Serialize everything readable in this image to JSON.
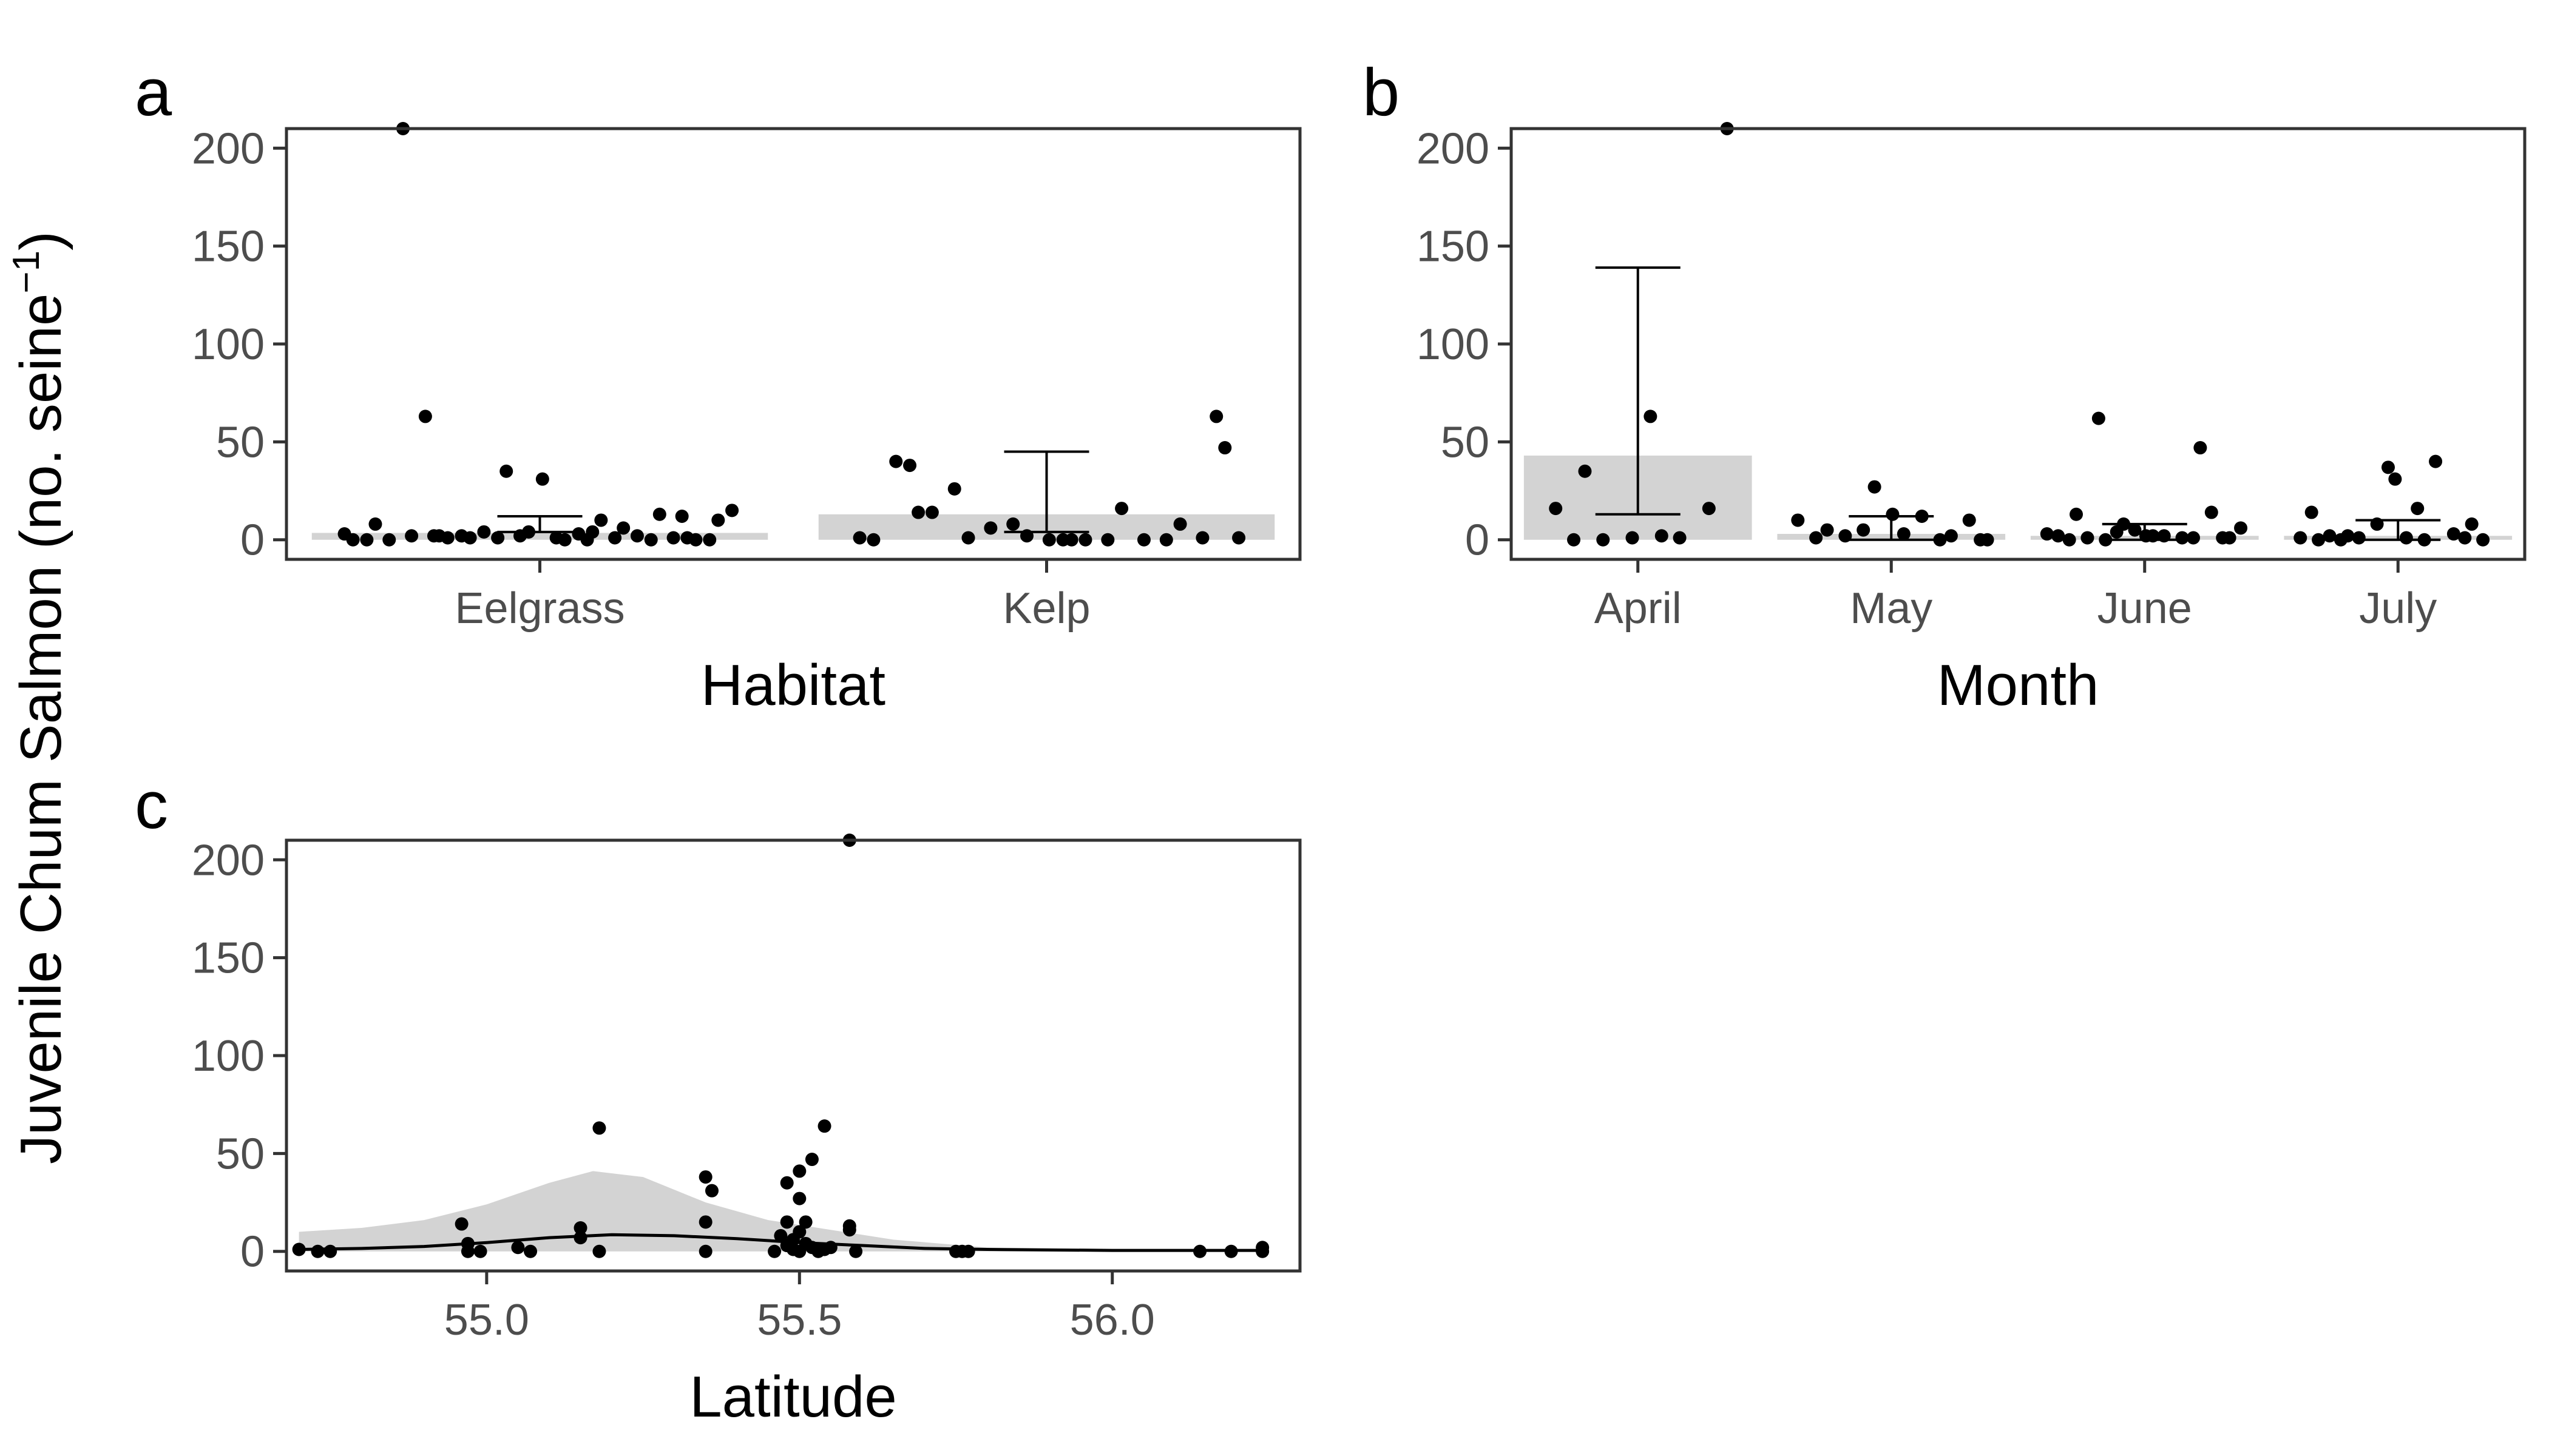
{
  "figure": {
    "shared_ylabel": "Juvenile Chum Salmon (no. seine",
    "shared_ylabel_sup": "−1",
    "shared_ylabel_close": ")"
  },
  "colors": {
    "bar_fill": "#d3d3d3",
    "ribbon_fill": "#d3d3d3",
    "point": "#000000",
    "line": "#000000",
    "panel_border": "#333333"
  },
  "chart_data": [
    {
      "panel": "a",
      "type": "bar",
      "xlabel": "Habitat",
      "ylim": [
        -10,
        210
      ],
      "yticks": [
        0,
        50,
        100,
        150,
        200
      ],
      "grid": false,
      "categories": [
        "Eelgrass",
        "Kelp"
      ],
      "values": [
        3.5,
        13
      ],
      "error_bars": [
        {
          "low": 4,
          "high": 12
        },
        {
          "low": 4,
          "high": 45
        }
      ],
      "points": [
        {
          "category": "Eelgrass",
          "y": [
            0,
            2,
            12,
            4,
            8,
            6,
            1,
            10,
            0,
            2,
            13,
            35,
            0,
            10,
            1,
            0,
            31,
            0,
            2,
            4,
            15,
            3,
            63,
            1,
            2,
            0,
            1,
            2,
            0,
            1,
            210,
            0,
            1,
            3,
            4,
            2,
            1
          ]
        },
        {
          "category": "Kelp",
          "y": [
            47,
            0,
            14,
            0,
            8,
            1,
            0,
            26,
            1,
            0,
            40,
            0,
            6,
            1,
            0,
            14,
            8,
            2,
            0,
            16,
            1,
            63,
            0,
            38
          ]
        }
      ]
    },
    {
      "panel": "b",
      "type": "bar",
      "xlabel": "Month",
      "ylim": [
        -10,
        210
      ],
      "yticks": [
        0,
        50,
        100,
        150,
        200
      ],
      "grid": false,
      "categories": [
        "April",
        "May",
        "June",
        "July"
      ],
      "values": [
        43,
        3,
        2,
        2
      ],
      "error_bars": [
        {
          "low": 13,
          "high": 139
        },
        {
          "low": 0,
          "high": 12
        },
        {
          "low": 0,
          "high": 8
        },
        {
          "low": 0,
          "high": 10
        }
      ],
      "points": [
        {
          "category": "April",
          "y": [
            2,
            35,
            16,
            1,
            16,
            1,
            0,
            210,
            63,
            0
          ]
        },
        {
          "category": "May",
          "y": [
            0,
            3,
            5,
            2,
            27,
            10,
            12,
            2,
            10,
            13,
            1,
            0,
            5,
            0
          ]
        },
        {
          "category": "June",
          "y": [
            62,
            1,
            2,
            0,
            1,
            4,
            6,
            2,
            1,
            14,
            5,
            2,
            1,
            0,
            1,
            2,
            13,
            47,
            8,
            3
          ]
        },
        {
          "category": "July",
          "y": [
            16,
            0,
            1,
            37,
            14,
            40,
            1,
            0,
            1,
            2,
            3,
            8,
            1,
            0,
            2,
            8,
            31,
            0
          ]
        }
      ]
    },
    {
      "panel": "c",
      "type": "scatter",
      "xlabel": "Latitude",
      "ylim": [
        -10,
        210
      ],
      "xlim": [
        54.68,
        56.3
      ],
      "xticks": [
        55.0,
        55.5,
        56.0
      ],
      "xticklabels": [
        "55.0",
        "55.5",
        "56.0"
      ],
      "yticks": [
        0,
        50,
        100,
        150,
        200
      ],
      "grid": false,
      "points": [
        {
          "x": 54.7,
          "y": 1
        },
        {
          "x": 54.73,
          "y": 0
        },
        {
          "x": 54.75,
          "y": 0
        },
        {
          "x": 54.96,
          "y": 14
        },
        {
          "x": 54.97,
          "y": 4
        },
        {
          "x": 54.97,
          "y": 0
        },
        {
          "x": 54.99,
          "y": 0
        },
        {
          "x": 55.05,
          "y": 2
        },
        {
          "x": 55.07,
          "y": 0
        },
        {
          "x": 55.15,
          "y": 7
        },
        {
          "x": 55.15,
          "y": 12
        },
        {
          "x": 55.18,
          "y": 63
        },
        {
          "x": 55.18,
          "y": 0
        },
        {
          "x": 55.35,
          "y": 38
        },
        {
          "x": 55.35,
          "y": 15
        },
        {
          "x": 55.36,
          "y": 31
        },
        {
          "x": 55.35,
          "y": 0
        },
        {
          "x": 55.46,
          "y": 0
        },
        {
          "x": 55.47,
          "y": 8
        },
        {
          "x": 55.48,
          "y": 35
        },
        {
          "x": 55.48,
          "y": 15
        },
        {
          "x": 55.48,
          "y": 3
        },
        {
          "x": 55.49,
          "y": 1
        },
        {
          "x": 55.49,
          "y": 6
        },
        {
          "x": 55.5,
          "y": 41
        },
        {
          "x": 55.5,
          "y": 27
        },
        {
          "x": 55.5,
          "y": 10
        },
        {
          "x": 55.5,
          "y": 0
        },
        {
          "x": 55.51,
          "y": 4
        },
        {
          "x": 55.51,
          "y": 15
        },
        {
          "x": 55.52,
          "y": 47
        },
        {
          "x": 55.52,
          "y": 2
        },
        {
          "x": 55.53,
          "y": 0
        },
        {
          "x": 55.54,
          "y": 64
        },
        {
          "x": 55.54,
          "y": 1
        },
        {
          "x": 55.55,
          "y": 2
        },
        {
          "x": 55.58,
          "y": 11
        },
        {
          "x": 55.58,
          "y": 13
        },
        {
          "x": 55.58,
          "y": 210
        },
        {
          "x": 55.59,
          "y": 0
        },
        {
          "x": 55.75,
          "y": 0
        },
        {
          "x": 55.76,
          "y": 0
        },
        {
          "x": 55.77,
          "y": 0
        },
        {
          "x": 56.14,
          "y": 0
        },
        {
          "x": 56.19,
          "y": 0
        },
        {
          "x": 56.24,
          "y": 0
        },
        {
          "x": 56.24,
          "y": 2
        }
      ],
      "smooth_line": [
        {
          "x": 54.7,
          "y": 1
        },
        {
          "x": 54.8,
          "y": 1.5
        },
        {
          "x": 54.9,
          "y": 2.5
        },
        {
          "x": 55.0,
          "y": 4.5
        },
        {
          "x": 55.1,
          "y": 7
        },
        {
          "x": 55.2,
          "y": 8.5
        },
        {
          "x": 55.3,
          "y": 8
        },
        {
          "x": 55.4,
          "y": 6.5
        },
        {
          "x": 55.5,
          "y": 4.5
        },
        {
          "x": 55.6,
          "y": 3
        },
        {
          "x": 55.7,
          "y": 1.5
        },
        {
          "x": 55.8,
          "y": 1
        },
        {
          "x": 56.0,
          "y": 0.5
        },
        {
          "x": 56.24,
          "y": 0.5
        }
      ],
      "ribbon": [
        {
          "x": 54.7,
          "low": 0,
          "high": 10
        },
        {
          "x": 54.8,
          "low": 0,
          "high": 12
        },
        {
          "x": 54.9,
          "low": 0,
          "high": 16
        },
        {
          "x": 55.0,
          "low": 0,
          "high": 24
        },
        {
          "x": 55.1,
          "low": 0,
          "high": 35
        },
        {
          "x": 55.17,
          "low": 0,
          "high": 41
        },
        {
          "x": 55.25,
          "low": 0,
          "high": 38
        },
        {
          "x": 55.35,
          "low": 0,
          "high": 25
        },
        {
          "x": 55.45,
          "low": 0,
          "high": 16
        },
        {
          "x": 55.55,
          "low": 0,
          "high": 11
        },
        {
          "x": 55.65,
          "low": 0,
          "high": 6
        },
        {
          "x": 55.8,
          "low": 0,
          "high": 2
        },
        {
          "x": 56.0,
          "low": 0,
          "high": 1
        },
        {
          "x": 56.24,
          "low": 0,
          "high": 1
        }
      ]
    }
  ]
}
